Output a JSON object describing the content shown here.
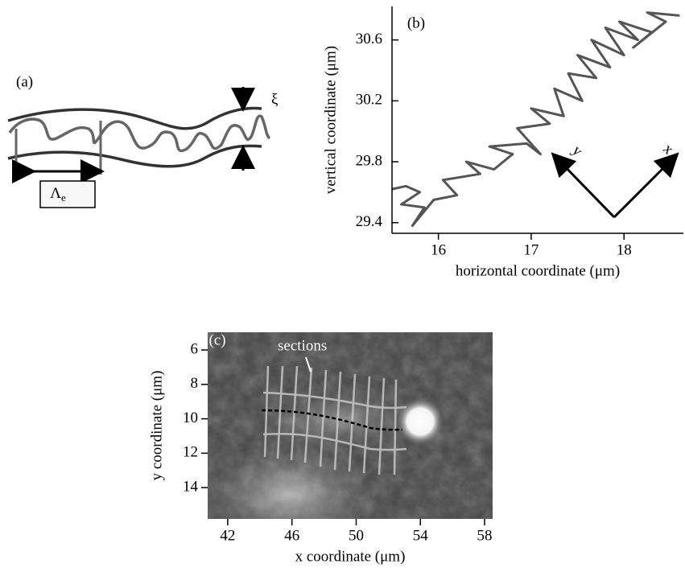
{
  "panel_a": {
    "label": "(a)",
    "xi": "ξ",
    "lambda": "Λ",
    "lambda_sub": "e"
  },
  "chart_data": [
    {
      "type": "line",
      "panel_label": "(b)",
      "x_label": "horizontal coordinate (μm)",
      "y_label": "vertical coordinate (μm)",
      "arrow_x": "x",
      "arrow_y": "y",
      "xlim": [
        15.5,
        18.64
      ],
      "ylim": [
        29.33,
        30.82
      ],
      "xticks": [
        16,
        17,
        18
      ],
      "yticks": [
        29.4,
        29.8,
        30.2,
        30.6
      ],
      "color": "#555555",
      "x": [
        15.5,
        15.65,
        15.8,
        15.6,
        15.85,
        15.72,
        15.95,
        16.2,
        16.05,
        16.45,
        16.3,
        16.6,
        16.8,
        16.55,
        16.95,
        17.1,
        16.85,
        17.2,
        17.0,
        17.35,
        17.25,
        17.55,
        17.4,
        17.7,
        17.5,
        17.85,
        17.65,
        18.0,
        17.8,
        18.15,
        17.95,
        18.3,
        18.1,
        18.45,
        18.25,
        18.6
      ],
      "y": [
        29.62,
        29.64,
        29.6,
        29.52,
        29.5,
        29.38,
        29.55,
        29.58,
        29.68,
        29.72,
        29.8,
        29.75,
        29.85,
        29.9,
        29.92,
        29.85,
        30.02,
        30.05,
        30.15,
        30.1,
        30.28,
        30.2,
        30.38,
        30.35,
        30.5,
        30.42,
        30.6,
        30.5,
        30.68,
        30.6,
        30.72,
        30.65,
        30.55,
        30.72,
        30.78,
        30.76
      ]
    },
    {
      "type": "image",
      "panel_label": "(c)",
      "annotation": "sections",
      "x_label": "x coordinate (μm)",
      "y_label": "y coordinate (μm)",
      "xlim": [
        40.75,
        58.5
      ],
      "ylim": [
        15.82,
        4.97
      ],
      "xticks": [
        42,
        46,
        50,
        54,
        58
      ],
      "yticks": [
        6,
        8,
        10,
        12,
        14
      ]
    }
  ]
}
